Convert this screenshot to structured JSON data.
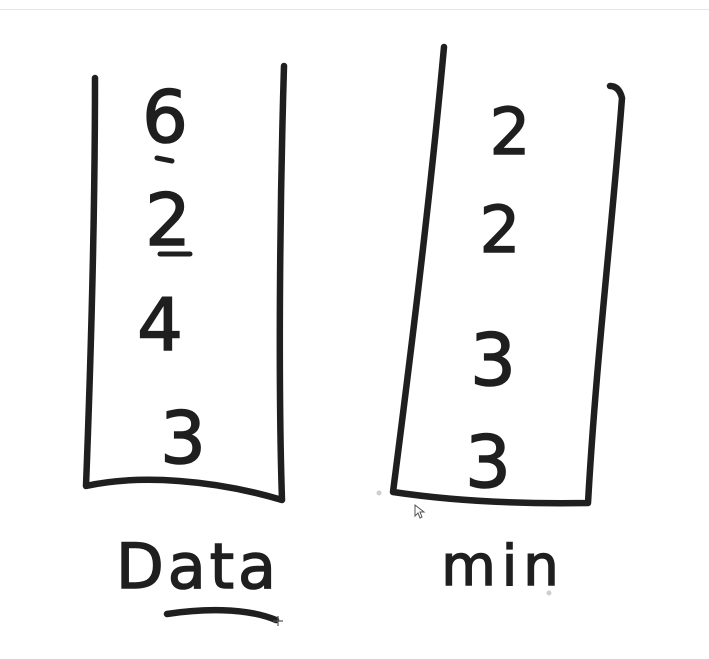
{
  "stacks": [
    {
      "id": "data",
      "label": "Data",
      "items": [
        "6",
        "2",
        "4",
        "3"
      ]
    },
    {
      "id": "min",
      "label": "min",
      "items": [
        "2",
        "2",
        "3",
        "3"
      ]
    }
  ],
  "ink_color": "#1f1f1f",
  "background_color": "#ffffff"
}
